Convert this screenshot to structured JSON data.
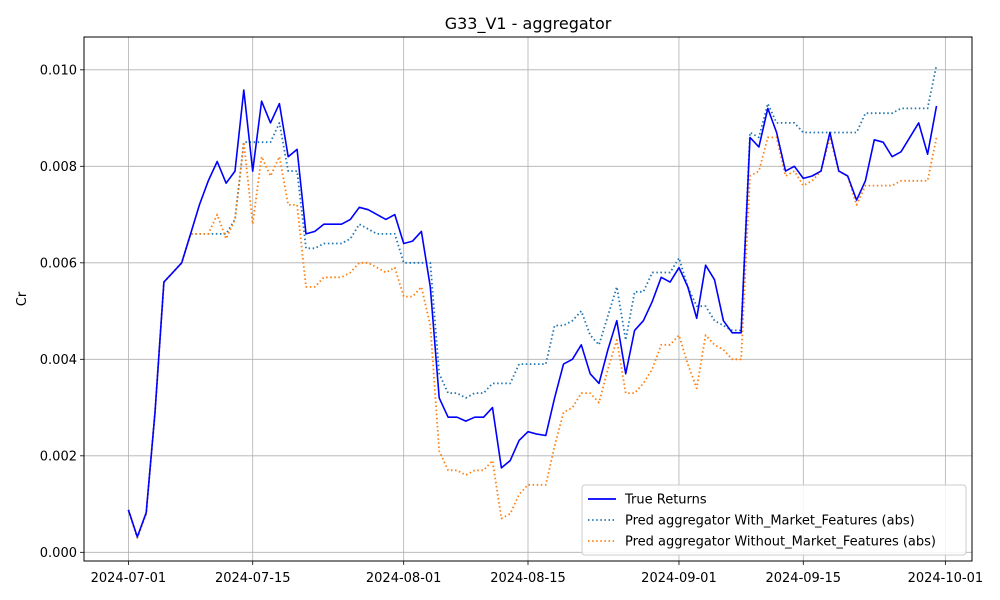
{
  "chart_data": {
    "type": "line",
    "title": "G33_V1 - aggregator",
    "xlabel": "",
    "ylabel": "Cr",
    "grid": true,
    "legend_position": "lower-right",
    "x_ticks": [
      "2024-07-01",
      "2024-07-15",
      "2024-08-01",
      "2024-08-15",
      "2024-09-01",
      "2024-09-15",
      "2024-10-01"
    ],
    "y_ticks": [
      "0.000",
      "0.002",
      "0.004",
      "0.006",
      "0.008",
      "0.010"
    ],
    "xlim": [
      "2024-06-26",
      "2024-10-04"
    ],
    "ylim": [
      -0.00018,
      0.01068
    ],
    "colors": {
      "true_returns": "#0000ff",
      "with_market": "#1f77b4",
      "without_market": "#ff7f0e",
      "grid": "#b0b0b0"
    },
    "series": [
      {
        "name": "True Returns",
        "style": "solid",
        "x": [
          "2024-07-01",
          "2024-07-02",
          "2024-07-03",
          "2024-07-04",
          "2024-07-05",
          "2024-07-06",
          "2024-07-07",
          "2024-07-08",
          "2024-07-09",
          "2024-07-10",
          "2024-07-11",
          "2024-07-12",
          "2024-07-13",
          "2024-07-14",
          "2024-07-15",
          "2024-07-16",
          "2024-07-17",
          "2024-07-18",
          "2024-07-19",
          "2024-07-20",
          "2024-07-21",
          "2024-07-22",
          "2024-07-23",
          "2024-07-24",
          "2024-07-25",
          "2024-07-26",
          "2024-07-27",
          "2024-07-28",
          "2024-07-29",
          "2024-07-30",
          "2024-07-31",
          "2024-08-01",
          "2024-08-02",
          "2024-08-03",
          "2024-08-04",
          "2024-08-05",
          "2024-08-06",
          "2024-08-07",
          "2024-08-08",
          "2024-08-09",
          "2024-08-10",
          "2024-08-11",
          "2024-08-12",
          "2024-08-13",
          "2024-08-14",
          "2024-08-15",
          "2024-08-16",
          "2024-08-17",
          "2024-08-18",
          "2024-08-19",
          "2024-08-20",
          "2024-08-21",
          "2024-08-22",
          "2024-08-23",
          "2024-08-24",
          "2024-08-25",
          "2024-08-26",
          "2024-08-27",
          "2024-08-28",
          "2024-08-29",
          "2024-08-30",
          "2024-08-31",
          "2024-09-01",
          "2024-09-02",
          "2024-09-03",
          "2024-09-04",
          "2024-09-05",
          "2024-09-06",
          "2024-09-07",
          "2024-09-08",
          "2024-09-09",
          "2024-09-10",
          "2024-09-11",
          "2024-09-12",
          "2024-09-13",
          "2024-09-14",
          "2024-09-15",
          "2024-09-16",
          "2024-09-17",
          "2024-09-18",
          "2024-09-19",
          "2024-09-20",
          "2024-09-21",
          "2024-09-22",
          "2024-09-23",
          "2024-09-24",
          "2024-09-25",
          "2024-09-26",
          "2024-09-27",
          "2024-09-28",
          "2024-09-29",
          "2024-09-30"
        ],
        "values": [
          0.00088,
          0.00032,
          0.00082,
          0.0029,
          0.0056,
          0.0058,
          0.006,
          0.0066,
          0.0072,
          0.0077,
          0.0081,
          0.00765,
          0.0079,
          0.00958,
          0.0079,
          0.00935,
          0.0089,
          0.0093,
          0.0082,
          0.00835,
          0.0066,
          0.00665,
          0.0068,
          0.0068,
          0.0068,
          0.0069,
          0.00715,
          0.0071,
          0.007,
          0.0069,
          0.007,
          0.0064,
          0.00645,
          0.00665,
          0.0055,
          0.0032,
          0.0028,
          0.0028,
          0.00272,
          0.0028,
          0.0028,
          0.003,
          0.00175,
          0.0019,
          0.00232,
          0.0025,
          0.00245,
          0.00242,
          0.0032,
          0.0039,
          0.004,
          0.0043,
          0.0037,
          0.0035,
          0.0042,
          0.0048,
          0.0037,
          0.0046,
          0.0048,
          0.0052,
          0.0057,
          0.0056,
          0.0059,
          0.0055,
          0.00485,
          0.00595,
          0.00565,
          0.0048,
          0.00455,
          0.00455,
          0.0086,
          0.0084,
          0.0092,
          0.0087,
          0.0079,
          0.008,
          0.00775,
          0.0078,
          0.0079,
          0.0087,
          0.0079,
          0.0078,
          0.0073,
          0.0077,
          0.00855,
          0.0085,
          0.0082,
          0.0083,
          0.0086,
          0.0089,
          0.00825,
          0.00925
        ]
      },
      {
        "name": "Pred aggregator With_Market_Features (abs)",
        "style": "dotted",
        "x": [
          "2024-07-01",
          "2024-07-02",
          "2024-07-03",
          "2024-07-04",
          "2024-07-05",
          "2024-07-06",
          "2024-07-07",
          "2024-07-08",
          "2024-07-09",
          "2024-07-10",
          "2024-07-11",
          "2024-07-12",
          "2024-07-13",
          "2024-07-14",
          "2024-07-15",
          "2024-07-16",
          "2024-07-17",
          "2024-07-18",
          "2024-07-19",
          "2024-07-20",
          "2024-07-21",
          "2024-07-22",
          "2024-07-23",
          "2024-07-24",
          "2024-07-25",
          "2024-07-26",
          "2024-07-27",
          "2024-07-28",
          "2024-07-29",
          "2024-07-30",
          "2024-07-31",
          "2024-08-01",
          "2024-08-02",
          "2024-08-03",
          "2024-08-04",
          "2024-08-05",
          "2024-08-06",
          "2024-08-07",
          "2024-08-08",
          "2024-08-09",
          "2024-08-10",
          "2024-08-11",
          "2024-08-12",
          "2024-08-13",
          "2024-08-14",
          "2024-08-15",
          "2024-08-16",
          "2024-08-17",
          "2024-08-18",
          "2024-08-19",
          "2024-08-20",
          "2024-08-21",
          "2024-08-22",
          "2024-08-23",
          "2024-08-24",
          "2024-08-25",
          "2024-08-26",
          "2024-08-27",
          "2024-08-28",
          "2024-08-29",
          "2024-08-30",
          "2024-08-31",
          "2024-09-01",
          "2024-09-02",
          "2024-09-03",
          "2024-09-04",
          "2024-09-05",
          "2024-09-06",
          "2024-09-07",
          "2024-09-08",
          "2024-09-09",
          "2024-09-10",
          "2024-09-11",
          "2024-09-12",
          "2024-09-13",
          "2024-09-14",
          "2024-09-15",
          "2024-09-16",
          "2024-09-17",
          "2024-09-18",
          "2024-09-19",
          "2024-09-20",
          "2024-09-21",
          "2024-09-22",
          "2024-09-23",
          "2024-09-24",
          "2024-09-25",
          "2024-09-26",
          "2024-09-27",
          "2024-09-28",
          "2024-09-29",
          "2024-09-30"
        ],
        "values": [
          0.00088,
          0.0003,
          0.0008,
          0.0029,
          0.0056,
          0.0058,
          0.006,
          0.0066,
          0.0066,
          0.0066,
          0.0066,
          0.0066,
          0.0069,
          0.0085,
          0.0085,
          0.0085,
          0.0085,
          0.0089,
          0.0079,
          0.0079,
          0.0063,
          0.0063,
          0.0064,
          0.0064,
          0.0064,
          0.0065,
          0.0068,
          0.0067,
          0.0066,
          0.0066,
          0.0066,
          0.006,
          0.006,
          0.006,
          0.006,
          0.0037,
          0.0033,
          0.0033,
          0.0032,
          0.0033,
          0.0033,
          0.0035,
          0.0035,
          0.0035,
          0.0039,
          0.0039,
          0.0039,
          0.0039,
          0.0047,
          0.0047,
          0.0048,
          0.005,
          0.0045,
          0.0043,
          0.0049,
          0.0055,
          0.0044,
          0.0054,
          0.0054,
          0.0058,
          0.0058,
          0.0058,
          0.0061,
          0.0055,
          0.0051,
          0.0051,
          0.0048,
          0.0047,
          0.0046,
          0.0046,
          0.0087,
          0.0086,
          0.0093,
          0.0089,
          0.0089,
          0.0089,
          0.0087,
          0.0087,
          0.0087,
          0.0087,
          0.0087,
          0.0087,
          0.0087,
          0.0091,
          0.0091,
          0.0091,
          0.0091,
          0.0092,
          0.0092,
          0.0092,
          0.0092,
          0.0101
        ]
      },
      {
        "name": "Pred aggregator Without_Market_Features (abs)",
        "style": "dotted",
        "x": [
          "2024-07-01",
          "2024-07-02",
          "2024-07-03",
          "2024-07-04",
          "2024-07-05",
          "2024-07-06",
          "2024-07-07",
          "2024-07-08",
          "2024-07-09",
          "2024-07-10",
          "2024-07-11",
          "2024-07-12",
          "2024-07-13",
          "2024-07-14",
          "2024-07-15",
          "2024-07-16",
          "2024-07-17",
          "2024-07-18",
          "2024-07-19",
          "2024-07-20",
          "2024-07-21",
          "2024-07-22",
          "2024-07-23",
          "2024-07-24",
          "2024-07-25",
          "2024-07-26",
          "2024-07-27",
          "2024-07-28",
          "2024-07-29",
          "2024-07-30",
          "2024-07-31",
          "2024-08-01",
          "2024-08-02",
          "2024-08-03",
          "2024-08-04",
          "2024-08-05",
          "2024-08-06",
          "2024-08-07",
          "2024-08-08",
          "2024-08-09",
          "2024-08-10",
          "2024-08-11",
          "2024-08-12",
          "2024-08-13",
          "2024-08-14",
          "2024-08-15",
          "2024-08-16",
          "2024-08-17",
          "2024-08-18",
          "2024-08-19",
          "2024-08-20",
          "2024-08-21",
          "2024-08-22",
          "2024-08-23",
          "2024-08-24",
          "2024-08-25",
          "2024-08-26",
          "2024-08-27",
          "2024-08-28",
          "2024-08-29",
          "2024-08-30",
          "2024-08-31",
          "2024-09-01",
          "2024-09-02",
          "2024-09-03",
          "2024-09-04",
          "2024-09-05",
          "2024-09-06",
          "2024-09-07",
          "2024-09-08",
          "2024-09-09",
          "2024-09-10",
          "2024-09-11",
          "2024-09-12",
          "2024-09-13",
          "2024-09-14",
          "2024-09-15",
          "2024-09-16",
          "2024-09-17",
          "2024-09-18",
          "2024-09-19",
          "2024-09-20",
          "2024-09-21",
          "2024-09-22",
          "2024-09-23",
          "2024-09-24",
          "2024-09-25",
          "2024-09-26",
          "2024-09-27",
          "2024-09-28",
          "2024-09-29",
          "2024-09-30"
        ],
        "values": [
          0.00088,
          0.0003,
          0.0008,
          0.0029,
          0.0056,
          0.0058,
          0.006,
          0.0066,
          0.0066,
          0.0066,
          0.007,
          0.0065,
          0.0069,
          0.0085,
          0.0068,
          0.0082,
          0.0078,
          0.0082,
          0.0072,
          0.0072,
          0.0055,
          0.0055,
          0.0057,
          0.0057,
          0.0057,
          0.0058,
          0.006,
          0.006,
          0.0059,
          0.0058,
          0.0059,
          0.0053,
          0.0053,
          0.0055,
          0.0047,
          0.0021,
          0.0017,
          0.0017,
          0.0016,
          0.0017,
          0.0017,
          0.0019,
          0.0007,
          0.0008,
          0.0012,
          0.0014,
          0.0014,
          0.0014,
          0.0022,
          0.0029,
          0.003,
          0.0033,
          0.0033,
          0.0031,
          0.0038,
          0.0044,
          0.0033,
          0.0033,
          0.0035,
          0.0038,
          0.0043,
          0.0043,
          0.0045,
          0.0039,
          0.0034,
          0.0045,
          0.0043,
          0.0042,
          0.004,
          0.004,
          0.0078,
          0.0079,
          0.0086,
          0.0086,
          0.0078,
          0.0079,
          0.0076,
          0.0077,
          0.0079,
          0.0086,
          0.0079,
          0.0078,
          0.0072,
          0.0076,
          0.0076,
          0.0076,
          0.0076,
          0.0077,
          0.0077,
          0.0077,
          0.0077,
          0.0086
        ]
      }
    ]
  }
}
